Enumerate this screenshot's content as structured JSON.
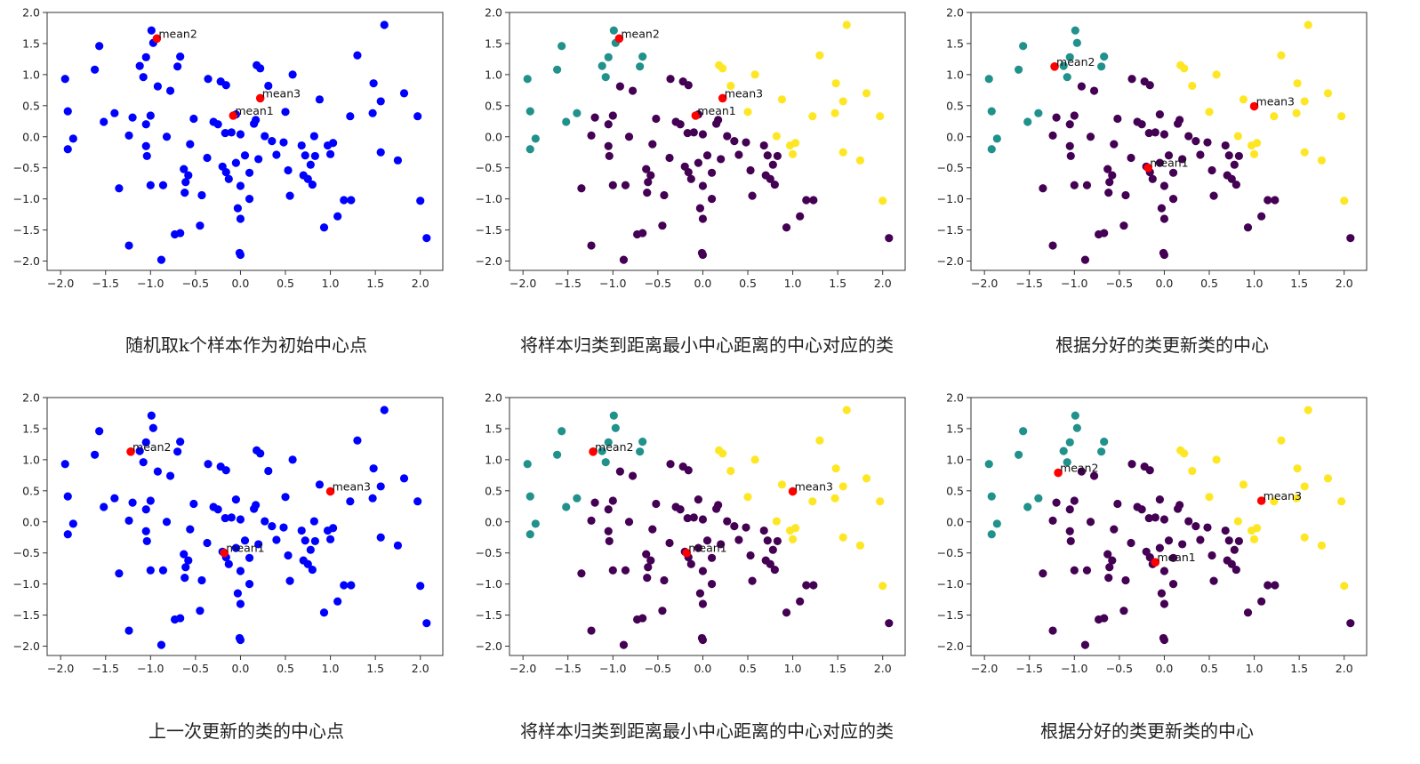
{
  "colors": {
    "blue": "#0000ff",
    "purple": "#440154",
    "teal": "#21918c",
    "yellow": "#fde725",
    "mean": "#ff0000"
  },
  "points": [
    [
      -1.95,
      0.93,
      2
    ],
    [
      -1.92,
      0.41,
      0
    ],
    [
      -1.92,
      -0.2,
      0
    ],
    [
      -1.86,
      -0.03,
      0
    ],
    [
      -1.57,
      1.46,
      0
    ],
    [
      -1.52,
      0.24,
      0
    ],
    [
      -1.62,
      1.08,
      0
    ],
    [
      -1.4,
      0.38,
      0
    ],
    [
      -1.35,
      -0.83,
      1
    ],
    [
      -1.24,
      0.02,
      1
    ],
    [
      -1.2,
      0.31,
      1
    ],
    [
      -1.12,
      1.14,
      0
    ],
    [
      -1.08,
      0.96,
      0
    ],
    [
      -1.05,
      1.28,
      2
    ],
    [
      -1.05,
      0.2,
      1
    ],
    [
      -1.05,
      -0.15,
      1
    ],
    [
      -1.04,
      -0.31,
      1
    ],
    [
      -1.0,
      0.34,
      1
    ],
    [
      -1.0,
      -0.78,
      1
    ],
    [
      -0.99,
      1.71,
      2
    ],
    [
      -0.97,
      1.51,
      2
    ],
    [
      -1.24,
      -1.75,
      1
    ],
    [
      -0.92,
      0.81,
      1
    ],
    [
      -0.88,
      -1.98,
      1
    ],
    [
      -0.86,
      -0.78,
      1
    ],
    [
      -0.82,
      0.0,
      1
    ],
    [
      -0.78,
      0.74,
      1
    ],
    [
      -0.73,
      -1.57,
      1
    ],
    [
      -0.7,
      1.13,
      2
    ],
    [
      -0.67,
      1.29,
      2
    ],
    [
      -0.67,
      -1.55,
      1
    ],
    [
      -0.63,
      -0.52,
      1
    ],
    [
      -0.62,
      -0.9,
      1
    ],
    [
      -0.61,
      -0.73,
      1
    ],
    [
      -0.58,
      -0.62,
      1
    ],
    [
      -0.56,
      -0.12,
      1
    ],
    [
      -0.52,
      0.29,
      1
    ],
    [
      -0.45,
      -1.43,
      1
    ],
    [
      -0.43,
      -0.94,
      1
    ],
    [
      -0.37,
      -0.34,
      1
    ],
    [
      -0.36,
      0.93,
      1
    ],
    [
      -0.3,
      0.24,
      1
    ],
    [
      -0.25,
      0.2,
      1
    ],
    [
      -0.22,
      0.89,
      1
    ],
    [
      -0.2,
      -0.48,
      1
    ],
    [
      -0.17,
      0.06,
      1
    ],
    [
      -0.16,
      -0.57,
      1
    ],
    [
      -0.16,
      0.83,
      1
    ],
    [
      -0.13,
      -0.68,
      1
    ],
    [
      -0.1,
      0.07,
      1
    ],
    [
      -0.05,
      -0.42,
      1
    ],
    [
      -0.05,
      0.36,
      1
    ],
    [
      -0.03,
      -1.15,
      1
    ],
    [
      -0.01,
      -1.87,
      1
    ],
    [
      0.0,
      -1.9,
      1
    ],
    [
      0.0,
      0.04,
      1
    ],
    [
      0.0,
      -0.79,
      1
    ],
    [
      0.0,
      -1.32,
      1
    ],
    [
      0.05,
      -0.3,
      1
    ],
    [
      0.1,
      -0.58,
      1
    ],
    [
      0.1,
      -1.0,
      1
    ],
    [
      0.15,
      0.21,
      1
    ],
    [
      0.17,
      0.27,
      1
    ],
    [
      0.18,
      1.15,
      3
    ],
    [
      0.2,
      -0.36,
      1
    ],
    [
      0.22,
      1.1,
      3
    ],
    [
      0.27,
      0.01,
      1
    ],
    [
      0.31,
      0.82,
      3
    ],
    [
      0.35,
      -0.07,
      1
    ],
    [
      0.4,
      -0.29,
      1
    ],
    [
      0.48,
      -0.09,
      1
    ],
    [
      0.5,
      0.4,
      3
    ],
    [
      0.53,
      -0.54,
      1
    ],
    [
      0.55,
      -0.95,
      1
    ],
    [
      0.58,
      1.0,
      3
    ],
    [
      0.68,
      -0.14,
      1
    ],
    [
      0.7,
      -0.62,
      1
    ],
    [
      0.72,
      -0.3,
      1
    ],
    [
      0.75,
      -0.68,
      1
    ],
    [
      0.78,
      -0.45,
      1
    ],
    [
      0.8,
      -0.77,
      1
    ],
    [
      0.82,
      0.01,
      3
    ],
    [
      0.83,
      -0.31,
      1
    ],
    [
      0.88,
      0.6,
      3
    ],
    [
      0.97,
      -0.14,
      3
    ],
    [
      1.0,
      -0.28,
      3
    ],
    [
      1.03,
      -0.1,
      3
    ],
    [
      0.93,
      -1.46,
      1
    ],
    [
      1.08,
      -1.28,
      1
    ],
    [
      1.15,
      -1.02,
      1
    ],
    [
      1.23,
      -1.02,
      1
    ],
    [
      1.22,
      0.33,
      3
    ],
    [
      1.3,
      1.31,
      3
    ],
    [
      1.47,
      0.38,
      3
    ],
    [
      1.48,
      0.86,
      3
    ],
    [
      1.56,
      0.57,
      3
    ],
    [
      1.56,
      -0.25,
      3
    ],
    [
      1.6,
      1.8,
      3
    ],
    [
      1.75,
      -0.38,
      3
    ],
    [
      1.82,
      0.7,
      3
    ],
    [
      1.97,
      0.33,
      3
    ],
    [
      2.0,
      -1.03,
      3
    ],
    [
      2.07,
      -1.63,
      1
    ]
  ],
  "panels": [
    {
      "colored": false,
      "x_range": [
        -2.15,
        2.25
      ],
      "y_range": [
        -2.15,
        2.0
      ],
      "xticks": [
        -2.0,
        -1.5,
        -1.0,
        -0.5,
        0.0,
        0.5,
        1.0,
        1.5,
        2.0
      ],
      "yticks": [
        2.0,
        1.5,
        1.0,
        0.5,
        0.0,
        -0.5,
        -1.0,
        -1.5,
        -2.0
      ],
      "means": [
        {
          "label": "mean2",
          "x": -0.93,
          "y": 1.58
        },
        {
          "label": "mean3",
          "x": 0.22,
          "y": 0.62
        },
        {
          "label": "mean1",
          "x": -0.08,
          "y": 0.34
        }
      ],
      "caption": "随机取k个样本作为初始中心点"
    },
    {
      "colored": true,
      "x_range": [
        -2.15,
        2.25
      ],
      "y_range": [
        -2.15,
        2.0
      ],
      "xticks": [
        -2.0,
        -1.5,
        -1.0,
        -0.5,
        0.0,
        0.5,
        1.0,
        1.5,
        2.0
      ],
      "yticks": [
        2.0,
        1.5,
        1.0,
        0.5,
        0.0,
        -0.5,
        -1.0,
        -1.5,
        -2.0
      ],
      "means": [
        {
          "label": "mean2",
          "x": -0.93,
          "y": 1.58
        },
        {
          "label": "mean3",
          "x": 0.22,
          "y": 0.62
        },
        {
          "label": "mean1",
          "x": -0.08,
          "y": 0.34
        }
      ],
      "caption": "将样本归类到距离最小中心距离的中心对应的类"
    },
    {
      "colored": true,
      "x_range": [
        -2.15,
        2.25
      ],
      "y_range": [
        -2.15,
        2.0
      ],
      "xticks": [
        -2.0,
        -1.5,
        -1.0,
        -0.5,
        0.0,
        0.5,
        1.0,
        1.5,
        2.0
      ],
      "yticks": [
        2.0,
        1.5,
        1.0,
        0.5,
        0.0,
        -0.5,
        -1.0,
        -1.5,
        -2.0
      ],
      "means": [
        {
          "label": "mean2",
          "x": -1.22,
          "y": 1.13
        },
        {
          "label": "mean3",
          "x": 1.0,
          "y": 0.49
        },
        {
          "label": "mean1",
          "x": -0.18,
          "y": -0.5
        }
      ],
      "caption": "根据分好的类更新类的中心"
    },
    {
      "colored": false,
      "x_range": [
        -2.15,
        2.25
      ],
      "y_range": [
        -2.15,
        2.0
      ],
      "xticks": [
        -2.0,
        -1.5,
        -1.0,
        -0.5,
        0.0,
        0.5,
        1.0,
        1.5,
        2.0
      ],
      "yticks": [
        2.0,
        1.5,
        1.0,
        0.5,
        0.0,
        -0.5,
        -1.0,
        -1.5,
        -2.0
      ],
      "means": [
        {
          "label": "mean2",
          "x": -1.22,
          "y": 1.13
        },
        {
          "label": "mean3",
          "x": 1.0,
          "y": 0.49
        },
        {
          "label": "mean1",
          "x": -0.18,
          "y": -0.5
        }
      ],
      "caption": "上一次更新的类的中心点"
    },
    {
      "colored": true,
      "x_range": [
        -2.15,
        2.25
      ],
      "y_range": [
        -2.15,
        2.0
      ],
      "xticks": [
        -2.0,
        -1.5,
        -1.0,
        -0.5,
        0.0,
        0.5,
        1.0,
        1.5,
        2.0
      ],
      "yticks": [
        2.0,
        1.5,
        1.0,
        0.5,
        0.0,
        -0.5,
        -1.0,
        -1.5,
        -2.0
      ],
      "means": [
        {
          "label": "mean2",
          "x": -1.22,
          "y": 1.13
        },
        {
          "label": "mean3",
          "x": 1.0,
          "y": 0.49
        },
        {
          "label": "mean1",
          "x": -0.18,
          "y": -0.5
        }
      ],
      "caption": "将样本归类到距离最小中心距离的中心对应的类"
    },
    {
      "colored": true,
      "x_range": [
        -2.15,
        2.25
      ],
      "y_range": [
        -2.15,
        2.0
      ],
      "xticks": [
        -2.0,
        -1.5,
        -1.0,
        -0.5,
        0.0,
        0.5,
        1.0,
        1.5,
        2.0
      ],
      "yticks": [
        2.0,
        1.5,
        1.0,
        0.5,
        0.0,
        -0.5,
        -1.0,
        -1.5,
        -2.0
      ],
      "means": [
        {
          "label": "mean2",
          "x": -1.18,
          "y": 0.79
        },
        {
          "label": "mean3",
          "x": 1.08,
          "y": 0.34
        },
        {
          "label": "mean1",
          "x": -0.1,
          "y": -0.65
        }
      ],
      "caption": "根据分好的类更新类的中心"
    }
  ],
  "chart_data": [
    {
      "type": "scatter",
      "title": "",
      "xlim": [
        -2.15,
        2.25
      ],
      "ylim": [
        -2.15,
        2.0
      ],
      "grid": false,
      "series": [
        {
          "name": "mean2",
          "x": [
            -0.93
          ],
          "y": [
            1.58
          ]
        },
        {
          "name": "mean3",
          "x": [
            0.22
          ],
          "y": [
            0.62
          ]
        },
        {
          "name": "mean1",
          "x": [
            -0.08
          ],
          "y": [
            0.34
          ]
        }
      ]
    },
    {
      "type": "scatter",
      "title": "",
      "xlim": [
        -2.15,
        2.25
      ],
      "ylim": [
        -2.15,
        2.0
      ],
      "grid": false,
      "series": [
        {
          "name": "mean2",
          "x": [
            -0.93
          ],
          "y": [
            1.58
          ]
        },
        {
          "name": "mean3",
          "x": [
            0.22
          ],
          "y": [
            0.62
          ]
        },
        {
          "name": "mean1",
          "x": [
            -0.08
          ],
          "y": [
            0.34
          ]
        }
      ]
    },
    {
      "type": "scatter",
      "title": "",
      "xlim": [
        -2.15,
        2.25
      ],
      "ylim": [
        -2.15,
        2.0
      ],
      "grid": false,
      "series": [
        {
          "name": "mean2",
          "x": [
            -1.22
          ],
          "y": [
            1.13
          ]
        },
        {
          "name": "mean3",
          "x": [
            1.0
          ],
          "y": [
            0.49
          ]
        },
        {
          "name": "mean1",
          "x": [
            -0.18
          ],
          "y": [
            -0.5
          ]
        }
      ]
    },
    {
      "type": "scatter",
      "title": "",
      "xlim": [
        -2.15,
        2.25
      ],
      "ylim": [
        -2.15,
        2.0
      ],
      "grid": false,
      "series": [
        {
          "name": "mean2",
          "x": [
            -1.22
          ],
          "y": [
            1.13
          ]
        },
        {
          "name": "mean3",
          "x": [
            1.0
          ],
          "y": [
            0.49
          ]
        },
        {
          "name": "mean1",
          "x": [
            -0.18
          ],
          "y": [
            -0.5
          ]
        }
      ]
    },
    {
      "type": "scatter",
      "title": "",
      "xlim": [
        -2.15,
        2.25
      ],
      "ylim": [
        -2.15,
        2.0
      ],
      "grid": false,
      "series": [
        {
          "name": "mean2",
          "x": [
            -1.22
          ],
          "y": [
            1.13
          ]
        },
        {
          "name": "mean3",
          "x": [
            1.0
          ],
          "y": [
            0.49
          ]
        },
        {
          "name": "mean1",
          "x": [
            -0.18
          ],
          "y": [
            -0.5
          ]
        }
      ]
    },
    {
      "type": "scatter",
      "title": "",
      "xlim": [
        -2.15,
        2.25
      ],
      "ylim": [
        -2.15,
        2.0
      ],
      "grid": false,
      "series": [
        {
          "name": "mean2",
          "x": [
            -1.18
          ],
          "y": [
            0.79
          ]
        },
        {
          "name": "mean3",
          "x": [
            1.08
          ],
          "y": [
            0.34
          ]
        },
        {
          "name": "mean1",
          "x": [
            -0.1
          ],
          "y": [
            -0.65
          ]
        }
      ]
    }
  ]
}
